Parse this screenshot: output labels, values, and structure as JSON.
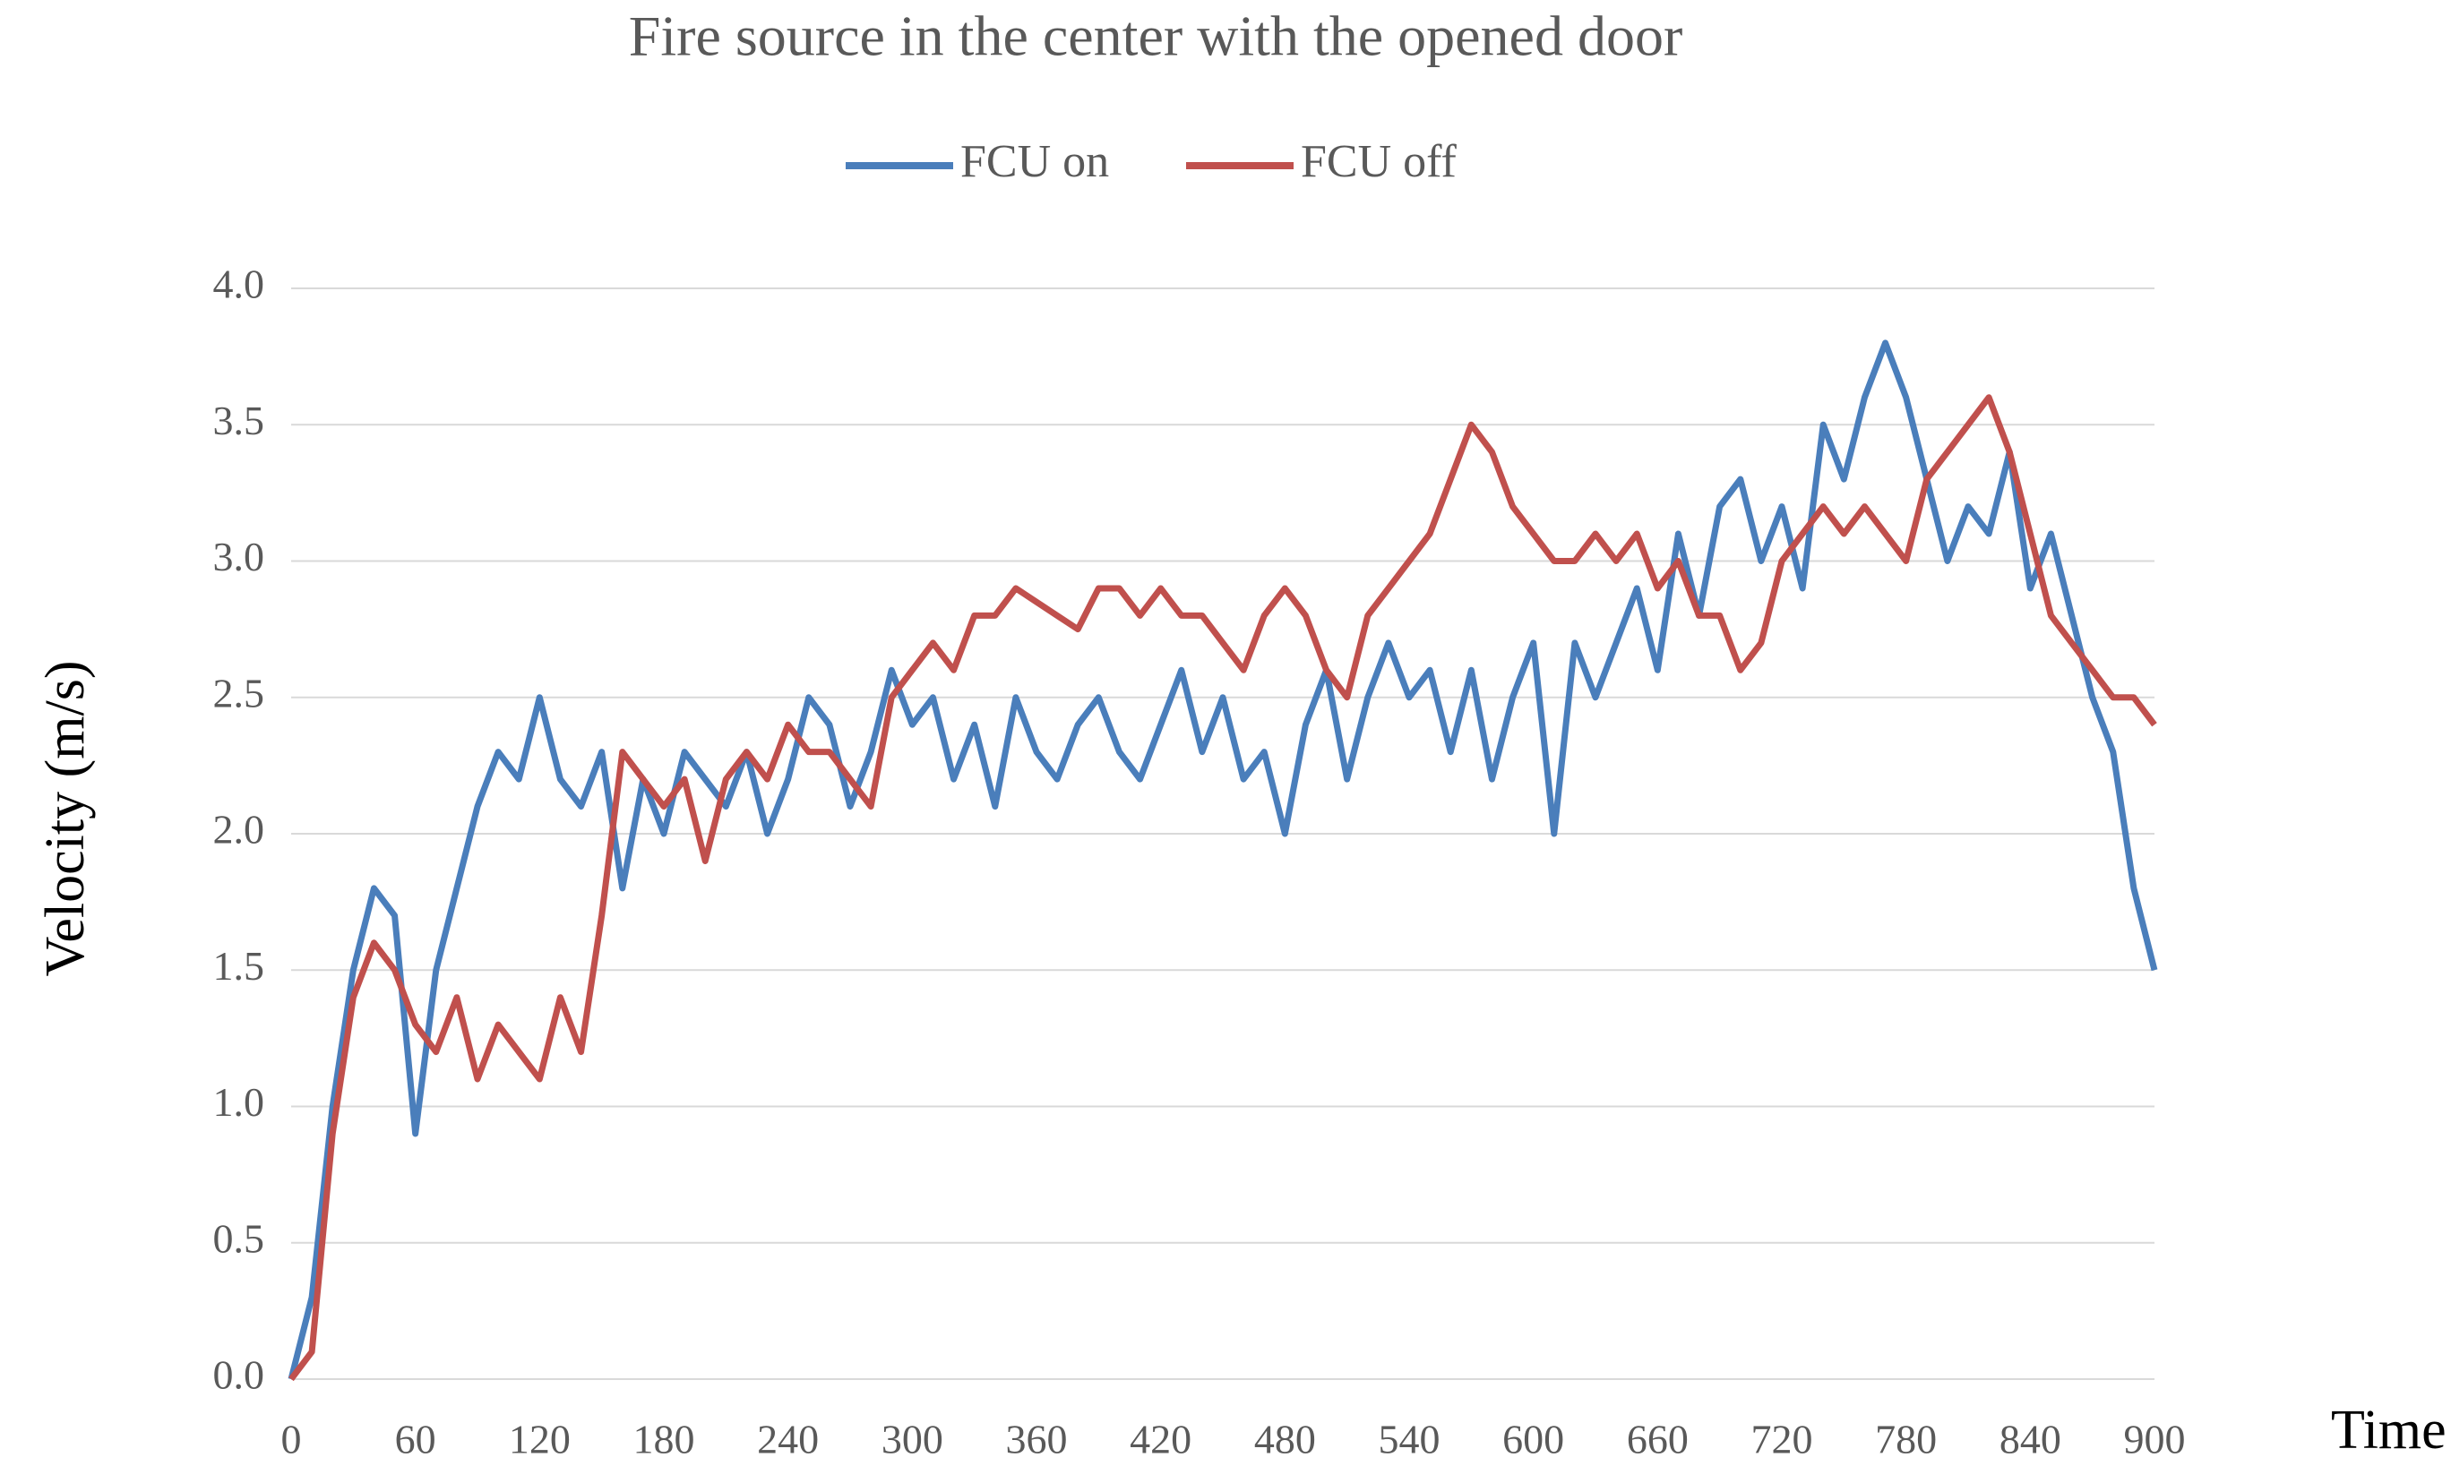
{
  "chart_data": {
    "type": "line",
    "title": "Fire source in the center with the opened door",
    "x_label": "Time (s)",
    "y_label": "Velocity (m/s)",
    "x": [
      0,
      10,
      20,
      30,
      40,
      50,
      60,
      70,
      80,
      90,
      100,
      110,
      120,
      130,
      140,
      150,
      160,
      170,
      180,
      190,
      200,
      210,
      220,
      230,
      240,
      250,
      260,
      270,
      280,
      290,
      300,
      310,
      320,
      330,
      340,
      350,
      360,
      370,
      380,
      390,
      400,
      410,
      420,
      430,
      440,
      450,
      460,
      470,
      480,
      490,
      500,
      510,
      520,
      530,
      540,
      550,
      560,
      570,
      580,
      590,
      600,
      610,
      620,
      630,
      640,
      650,
      660,
      670,
      680,
      690,
      700,
      710,
      720,
      730,
      740,
      750,
      760,
      770,
      780,
      790,
      800,
      810,
      820,
      830,
      840,
      850,
      860,
      870,
      880,
      890,
      900
    ],
    "series": [
      {
        "name": "FCU on",
        "color": "#4a7ebb",
        "values": [
          0,
          0.3,
          1.0,
          1.5,
          1.8,
          1.7,
          0.9,
          1.5,
          1.8,
          2.1,
          2.3,
          2.2,
          2.5,
          2.2,
          2.1,
          2.3,
          1.8,
          2.2,
          2.0,
          2.3,
          2.2,
          2.1,
          2.3,
          2.0,
          2.2,
          2.5,
          2.4,
          2.1,
          2.3,
          2.6,
          2.4,
          2.5,
          2.2,
          2.4,
          2.1,
          2.5,
          2.3,
          2.2,
          2.4,
          2.5,
          2.3,
          2.2,
          2.4,
          2.6,
          2.3,
          2.5,
          2.2,
          2.3,
          2.0,
          2.4,
          2.6,
          2.2,
          2.5,
          2.7,
          2.5,
          2.6,
          2.3,
          2.6,
          2.2,
          2.5,
          2.7,
          2.0,
          2.7,
          2.5,
          2.7,
          2.9,
          2.6,
          3.1,
          2.8,
          3.2,
          3.3,
          3.0,
          3.2,
          2.9,
          3.5,
          3.3,
          3.6,
          3.8,
          3.6,
          3.3,
          3.0,
          3.2,
          3.1,
          3.4,
          2.9,
          3.1,
          2.8,
          2.5,
          2.3,
          1.8,
          1.5
        ]
      },
      {
        "name": "FCU off",
        "color": "#c0504d",
        "values": [
          0,
          0.1,
          0.9,
          1.4,
          1.6,
          1.5,
          1.3,
          1.2,
          1.4,
          1.1,
          1.3,
          1.2,
          1.1,
          1.4,
          1.2,
          1.7,
          2.3,
          2.2,
          2.1,
          2.2,
          1.9,
          2.2,
          2.3,
          2.2,
          2.4,
          2.3,
          2.3,
          2.2,
          2.1,
          2.5,
          2.6,
          2.7,
          2.6,
          2.8,
          2.8,
          2.9,
          2.85,
          2.8,
          2.75,
          2.9,
          2.9,
          2.8,
          2.9,
          2.8,
          2.8,
          2.7,
          2.6,
          2.8,
          2.9,
          2.8,
          2.6,
          2.5,
          2.8,
          2.9,
          3.0,
          3.1,
          3.3,
          3.5,
          3.4,
          3.2,
          3.1,
          3.0,
          3.0,
          3.1,
          3.0,
          3.1,
          2.9,
          3.0,
          2.8,
          2.8,
          2.6,
          2.7,
          3.0,
          3.1,
          3.2,
          3.1,
          3.2,
          3.1,
          3.0,
          3.3,
          3.4,
          3.5,
          3.6,
          3.4,
          3.1,
          2.8,
          2.7,
          2.6,
          2.5,
          2.5,
          2.4
        ]
      }
    ],
    "xlim": [
      0,
      900
    ],
    "xticks": [
      0,
      60,
      120,
      180,
      240,
      300,
      360,
      420,
      480,
      540,
      600,
      660,
      720,
      780,
      840,
      900
    ],
    "ylim": [
      0,
      4
    ],
    "yticks": [
      {
        "value": 0,
        "label": "0.0"
      },
      0.5,
      {
        "value": 1,
        "label": "1.0"
      },
      1.5,
      {
        "value": 2,
        "label": "2.0"
      },
      2.5,
      {
        "value": 3,
        "label": "3.0"
      },
      3.5,
      {
        "value": 4,
        "label": "4.0"
      }
    ],
    "grid": true,
    "legend": "top"
  }
}
